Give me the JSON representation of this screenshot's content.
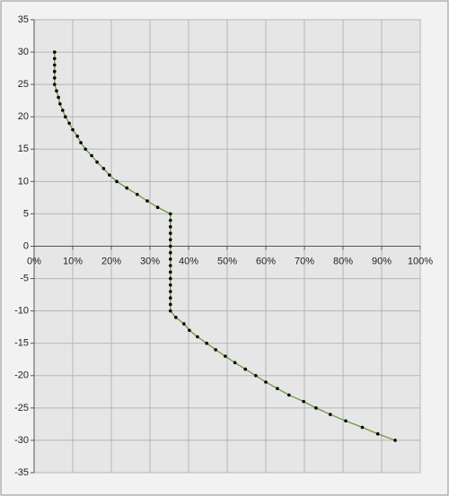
{
  "chart_data": {
    "type": "scatter",
    "x": [
      5.3,
      5.3,
      5.3,
      5.3,
      5.3,
      5.3,
      5.8,
      6.3,
      6.7,
      7.4,
      8.1,
      9.1,
      10,
      11.2,
      12.1,
      13.3,
      14.9,
      16.3,
      18,
      19.5,
      21.4,
      24,
      26.7,
      29.3,
      32,
      35.3,
      35.3,
      35.3,
      35.3,
      35.3,
      35.3,
      35.3,
      35.3,
      35.3,
      35.3,
      35.3,
      35.3,
      35.3,
      35.3,
      35.3,
      35.3,
      36.7,
      38.8,
      40.2,
      42.3,
      44.7,
      47,
      49.5,
      52,
      54.7,
      57.4,
      60,
      63,
      66,
      69.8,
      73,
      76.7,
      80.7,
      85,
      89,
      93.5
    ],
    "series": [
      {
        "color": "#6b9a3c",
        "marker_color": "#000000",
        "values": [
          30,
          29,
          28,
          27,
          26,
          25,
          24,
          23,
          22,
          21,
          20,
          19,
          18,
          17,
          16,
          15,
          14,
          13,
          12,
          11,
          10,
          9,
          8,
          7,
          6,
          5,
          4,
          3,
          2,
          1,
          0,
          -1,
          -2,
          -3,
          -4,
          -5,
          -6,
          -7,
          -8,
          -9,
          -10,
          -11,
          -12,
          -13,
          -14,
          -15,
          -16,
          -17,
          -18,
          -19,
          -20,
          -21,
          -22,
          -23,
          -24,
          -25,
          -26,
          -27,
          -28,
          -29,
          -30
        ]
      }
    ],
    "xlim": [
      0,
      100
    ],
    "xticks": [
      {
        "value": 0,
        "label": "0%"
      },
      {
        "value": 10,
        "label": "10%"
      },
      {
        "value": 20,
        "label": "20%"
      },
      {
        "value": 30,
        "label": "30%"
      },
      {
        "value": 40,
        "label": "40%"
      },
      {
        "value": 50,
        "label": "50%"
      },
      {
        "value": 60,
        "label": "60%"
      },
      {
        "value": 70,
        "label": "70%"
      },
      {
        "value": 80,
        "label": "80%"
      },
      {
        "value": 90,
        "label": "90%"
      },
      {
        "value": 100,
        "label": "100%"
      }
    ],
    "ylim": [
      -35,
      35
    ],
    "yticks": [
      -35,
      -30,
      -25,
      -20,
      -15,
      -10,
      -5,
      0,
      5,
      10,
      15,
      20,
      25,
      30,
      35
    ],
    "grid": true
  }
}
